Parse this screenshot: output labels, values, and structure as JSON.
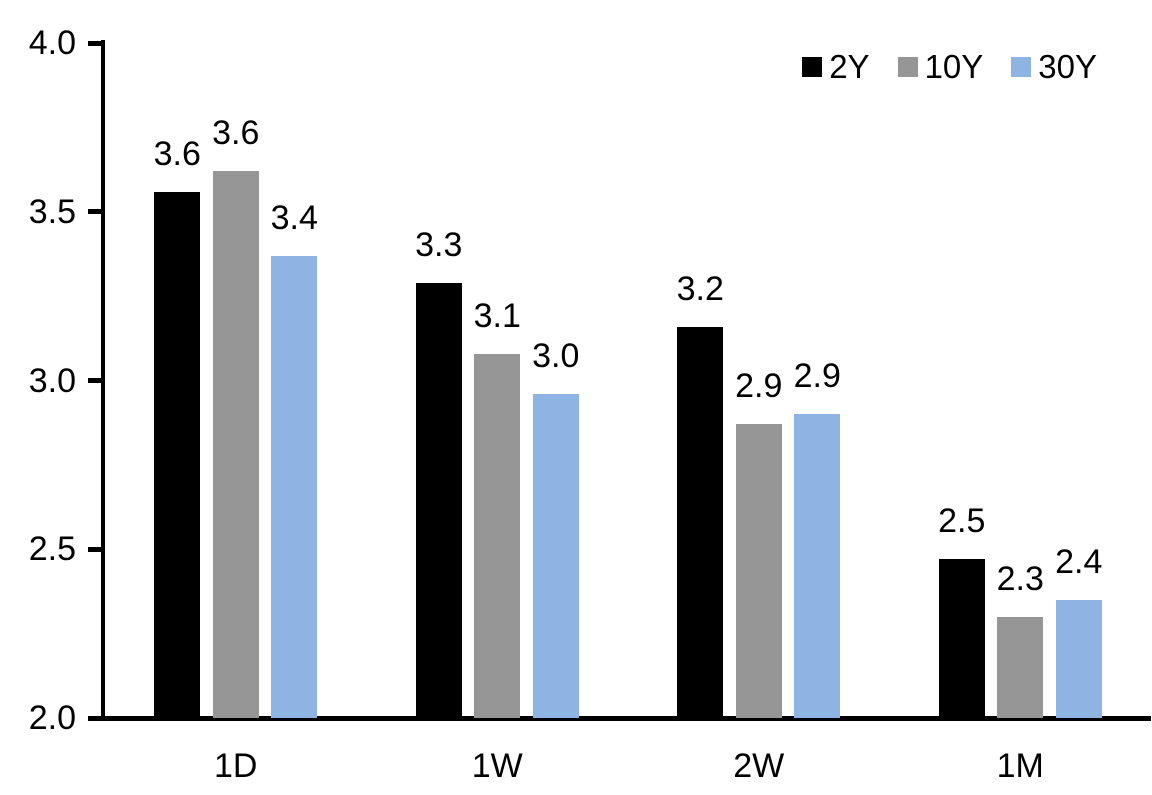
{
  "chart_data": {
    "type": "bar",
    "categories": [
      "1D",
      "1W",
      "2W",
      "1M"
    ],
    "series": [
      {
        "name": "2Y",
        "color": "#000000",
        "values": [
          3.6,
          3.3,
          3.2,
          2.5
        ],
        "labels": [
          "3.6",
          "3.3",
          "3.2",
          "2.5"
        ],
        "values_drawn": [
          3.56,
          3.29,
          3.16,
          2.47
        ]
      },
      {
        "name": "10Y",
        "color": "#969696",
        "values": [
          3.6,
          3.1,
          2.9,
          2.3
        ],
        "labels": [
          "3.6",
          "3.1",
          "2.9",
          "2.3"
        ],
        "values_drawn": [
          3.62,
          3.08,
          2.87,
          2.3
        ]
      },
      {
        "name": "30Y",
        "color": "#8DB4E2",
        "values": [
          3.4,
          3.0,
          2.9,
          2.4
        ],
        "labels": [
          "3.4",
          "3.0",
          "2.9",
          "2.4"
        ],
        "values_drawn": [
          3.37,
          2.96,
          2.9,
          2.35
        ]
      }
    ],
    "y_axis": {
      "min": 2.0,
      "max": 4.0,
      "ticks": [
        4.0,
        3.5,
        3.0,
        2.5,
        2.0
      ],
      "tick_labels": [
        "4.0",
        "3.5",
        "3.0",
        "2.5",
        "2.0"
      ]
    },
    "data_labels_shown": true,
    "grid": false,
    "legend_position": "top-right",
    "axis_color": "#000000",
    "background_color": "#FFFFFF"
  }
}
